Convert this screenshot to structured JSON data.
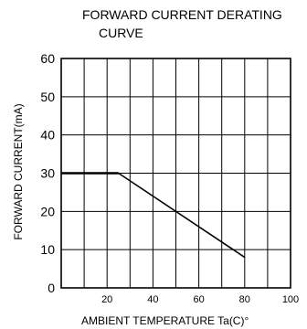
{
  "chart_data": {
    "type": "line",
    "title_line1": "FORWARD CURRENT DERATING",
    "title_line2": "CURVE",
    "xlabel": "AMBIENT TEMPERATURE Ta(C)°",
    "ylabel": "FORWARD CURRENT(mA)",
    "xlim": [
      0,
      100
    ],
    "ylim": [
      0,
      60
    ],
    "x_ticks": [
      20,
      40,
      60,
      80,
      100
    ],
    "y_ticks": [
      0,
      10,
      20,
      30,
      40,
      50,
      60
    ],
    "grid": true,
    "series": [
      {
        "x": [
          0,
          25,
          80
        ],
        "y": [
          30,
          30,
          8
        ],
        "color": "#000000"
      }
    ]
  }
}
